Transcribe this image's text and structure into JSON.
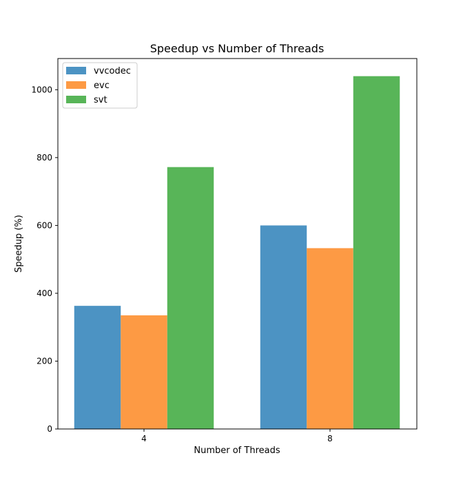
{
  "chart_data": {
    "type": "bar",
    "title": "Speedup vs Number of Threads",
    "xlabel": "Number of Threads",
    "ylabel": "Speedup (%)",
    "categories": [
      "4",
      "8"
    ],
    "series": [
      {
        "name": "vvcodec",
        "color": "#4c93c3",
        "values": [
          363,
          600
        ]
      },
      {
        "name": "evc",
        "color": "#fd9a44",
        "values": [
          335,
          533
        ]
      },
      {
        "name": "svt",
        "color": "#58b558",
        "values": [
          772,
          1040
        ]
      }
    ],
    "ylim": [
      0,
      1092
    ],
    "yticks": [
      0,
      200,
      400,
      600,
      800,
      1000
    ],
    "grid": false,
    "legend": "top-left"
  }
}
